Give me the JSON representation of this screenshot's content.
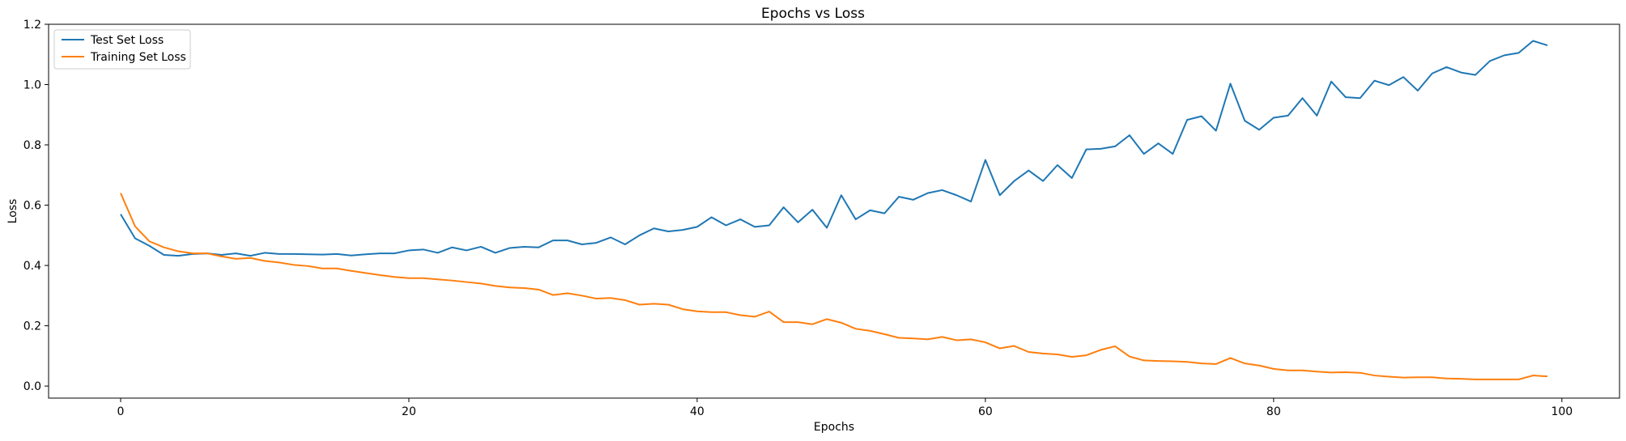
{
  "chart_data": {
    "type": "line",
    "title": "Epochs vs Loss",
    "xlabel": "Epochs",
    "ylabel": "Loss",
    "xlim": [
      -5,
      104
    ],
    "ylim": [
      -0.04,
      1.2
    ],
    "xticks": [
      0,
      20,
      40,
      60,
      80,
      100
    ],
    "yticks": [
      0.0,
      0.2,
      0.4,
      0.6,
      0.8,
      1.0,
      1.2
    ],
    "xtick_labels": [
      "0",
      "20",
      "40",
      "60",
      "80",
      "100"
    ],
    "ytick_labels": [
      "0.0",
      "0.2",
      "0.4",
      "0.6",
      "0.8",
      "1.0",
      "1.2"
    ],
    "grid": false,
    "legend_position": "top-left",
    "series": [
      {
        "name": "Test Set Loss",
        "color": "#1f77b4",
        "x": [
          0,
          1,
          2,
          3,
          4,
          5,
          6,
          7,
          8,
          9,
          10,
          11,
          12,
          13,
          14,
          15,
          16,
          17,
          18,
          19,
          20,
          21,
          22,
          23,
          24,
          25,
          26,
          27,
          28,
          29,
          30,
          31,
          32,
          33,
          34,
          35,
          36,
          37,
          38,
          39,
          40,
          41,
          42,
          43,
          44,
          45,
          46,
          47,
          48,
          49,
          50,
          51,
          52,
          53,
          54,
          55,
          56,
          57,
          58,
          59,
          60,
          61,
          62,
          63,
          64,
          65,
          66,
          67,
          68,
          69,
          70,
          71,
          72,
          73,
          74,
          75,
          76,
          77,
          78,
          79,
          80,
          81,
          82,
          83,
          84,
          85,
          86,
          87,
          88,
          89,
          90,
          91,
          92,
          93,
          94,
          95,
          96,
          97,
          98,
          99
        ],
        "values": [
          0.57,
          0.49,
          0.465,
          0.435,
          0.432,
          0.438,
          0.44,
          0.435,
          0.44,
          0.432,
          0.442,
          0.438,
          0.438,
          0.437,
          0.436,
          0.438,
          0.433,
          0.437,
          0.44,
          0.44,
          0.45,
          0.453,
          0.442,
          0.46,
          0.45,
          0.462,
          0.442,
          0.458,
          0.462,
          0.46,
          0.483,
          0.483,
          0.47,
          0.475,
          0.493,
          0.47,
          0.5,
          0.523,
          0.513,
          0.518,
          0.528,
          0.56,
          0.533,
          0.553,
          0.528,
          0.533,
          0.593,
          0.543,
          0.585,
          0.525,
          0.633,
          0.553,
          0.583,
          0.573,
          0.628,
          0.618,
          0.64,
          0.65,
          0.633,
          0.612,
          0.75,
          0.633,
          0.68,
          0.715,
          0.68,
          0.733,
          0.69,
          0.785,
          0.787,
          0.795,
          0.832,
          0.77,
          0.805,
          0.77,
          0.883,
          0.895,
          0.847,
          1.003,
          0.88,
          0.85,
          0.89,
          0.897,
          0.955,
          0.897,
          1.01,
          0.958,
          0.955,
          1.013,
          0.998,
          1.025,
          0.98,
          1.037,
          1.058,
          1.04,
          1.032,
          1.078,
          1.097,
          1.105,
          1.145,
          1.13
        ]
      },
      {
        "name": "Training Set Loss",
        "color": "#ff7f0e",
        "x": [
          0,
          1,
          2,
          3,
          4,
          5,
          6,
          7,
          8,
          9,
          10,
          11,
          12,
          13,
          14,
          15,
          16,
          17,
          18,
          19,
          20,
          21,
          22,
          23,
          24,
          25,
          26,
          27,
          28,
          29,
          30,
          31,
          32,
          33,
          34,
          35,
          36,
          37,
          38,
          39,
          40,
          41,
          42,
          43,
          44,
          45,
          46,
          47,
          48,
          49,
          50,
          51,
          52,
          53,
          54,
          55,
          56,
          57,
          58,
          59,
          60,
          61,
          62,
          63,
          64,
          65,
          66,
          67,
          68,
          69,
          70,
          71,
          72,
          73,
          74,
          75,
          76,
          77,
          78,
          79,
          80,
          81,
          82,
          83,
          84,
          85,
          86,
          87,
          88,
          89,
          90,
          91,
          92,
          93,
          94,
          95,
          96,
          97,
          98,
          99
        ],
        "values": [
          0.64,
          0.53,
          0.48,
          0.46,
          0.447,
          0.44,
          0.44,
          0.43,
          0.422,
          0.425,
          0.415,
          0.41,
          0.402,
          0.398,
          0.39,
          0.39,
          0.382,
          0.375,
          0.368,
          0.362,
          0.358,
          0.358,
          0.354,
          0.35,
          0.345,
          0.34,
          0.332,
          0.327,
          0.325,
          0.32,
          0.302,
          0.308,
          0.3,
          0.29,
          0.292,
          0.285,
          0.27,
          0.273,
          0.27,
          0.255,
          0.248,
          0.245,
          0.245,
          0.235,
          0.23,
          0.247,
          0.212,
          0.212,
          0.205,
          0.222,
          0.21,
          0.19,
          0.183,
          0.172,
          0.16,
          0.158,
          0.155,
          0.163,
          0.152,
          0.155,
          0.145,
          0.125,
          0.133,
          0.113,
          0.108,
          0.105,
          0.097,
          0.102,
          0.12,
          0.132,
          0.098,
          0.085,
          0.083,
          0.082,
          0.08,
          0.075,
          0.073,
          0.093,
          0.075,
          0.068,
          0.057,
          0.052,
          0.052,
          0.048,
          0.045,
          0.046,
          0.044,
          0.035,
          0.031,
          0.028,
          0.029,
          0.029,
          0.025,
          0.024,
          0.022,
          0.022,
          0.022,
          0.022,
          0.035,
          0.032
        ]
      }
    ]
  }
}
